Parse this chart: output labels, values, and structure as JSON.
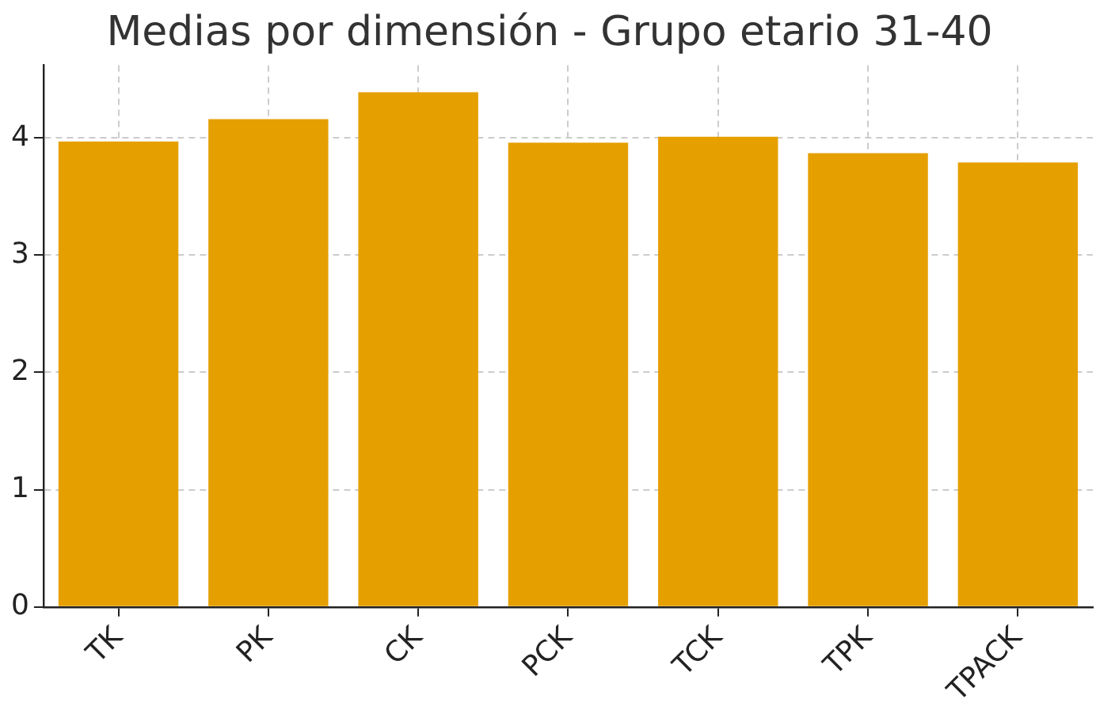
{
  "chart_data": {
    "type": "bar",
    "title": "Medias por dimensión - Grupo etario 31-40",
    "categories": [
      "TK",
      "PK",
      "CK",
      "PCK",
      "TCK",
      "TPK",
      "TPACK"
    ],
    "values": [
      3.97,
      4.16,
      4.39,
      3.96,
      4.01,
      3.87,
      3.79
    ],
    "color": "#e5a000",
    "ylim": [
      0,
      4.62
    ],
    "yticks": [
      0,
      1,
      2,
      3,
      4
    ],
    "grid": true
  }
}
